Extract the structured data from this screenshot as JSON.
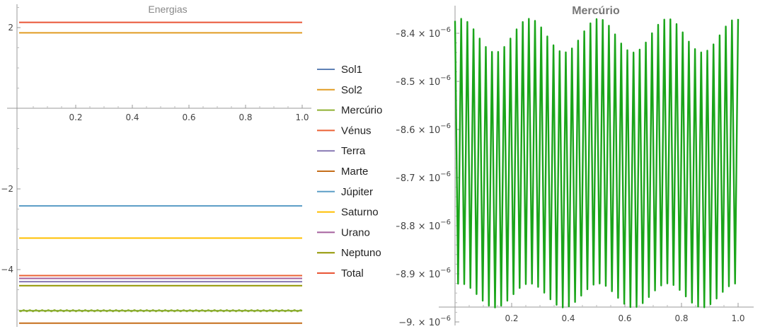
{
  "chart_data": [
    {
      "type": "line",
      "title": "Energias",
      "xlim": [
        0,
        1.0
      ],
      "ylim": [
        -5.4,
        2.65
      ],
      "xticks": [
        "0.2",
        "0.4",
        "0.6",
        "0.8",
        "1.0"
      ],
      "yticks": [
        "2",
        "−2",
        "−4"
      ],
      "legend_position": "right",
      "series": [
        {
          "name": "Sol1",
          "color": "#5E81B5",
          "values": [
            -5.02,
            -5.02
          ]
        },
        {
          "name": "Sol2",
          "color": "#E19C24",
          "values": [
            1.87,
            1.87
          ]
        },
        {
          "name": "Mercúrio",
          "color": "#8FB032",
          "values": [
            -5.02,
            -5.02
          ]
        },
        {
          "name": "Vénus",
          "color": "#EB6235",
          "values": [
            -4.15,
            -4.15
          ]
        },
        {
          "name": "Terra",
          "color": "#8778B3",
          "values": [
            -4.3,
            -4.3
          ]
        },
        {
          "name": "Marte",
          "color": "#C56E1A",
          "values": [
            -5.33,
            -5.33
          ]
        },
        {
          "name": "Júpiter",
          "color": "#5D9EC7",
          "values": [
            -2.42,
            -2.42
          ]
        },
        {
          "name": "Saturno",
          "color": "#FFBF00",
          "values": [
            -3.22,
            -3.22
          ]
        },
        {
          "name": "Urano",
          "color": "#A5609D",
          "values": [
            -4.22,
            -4.22
          ]
        },
        {
          "name": "Neptuno",
          "color": "#929600",
          "values": [
            -4.4,
            -4.4
          ]
        },
        {
          "name": "Total",
          "color": "#E95536",
          "values": [
            2.13,
            2.13
          ]
        }
      ]
    },
    {
      "type": "line",
      "title": "Mercúrio",
      "xlim": [
        0,
        1.0
      ],
      "ylim": [
        -9e-06,
        -8.38e-06
      ],
      "xticks": [
        "0.2",
        "0.4",
        "0.6",
        "0.8",
        "1.0"
      ],
      "yticks": [
        {
          "mant": "−8.4",
          "exp": "−6"
        },
        {
          "mant": "−8.5",
          "exp": "−6"
        },
        {
          "mant": "−8.6",
          "exp": "−6"
        },
        {
          "mant": "−8.7",
          "exp": "−6"
        },
        {
          "mant": "−8.8",
          "exp": "−6"
        },
        {
          "mant": "−8.9",
          "exp": "−6"
        },
        {
          "mant": "−9.",
          "exp": "−6"
        }
      ],
      "series": [
        {
          "color": "#1AA51A",
          "oscillation_cycles": 46,
          "y_max_range": [
            -8.44e-06,
            -8.37e-06
          ],
          "y_min_range": [
            -8.97e-06,
            -8.92e-06
          ]
        }
      ]
    }
  ]
}
